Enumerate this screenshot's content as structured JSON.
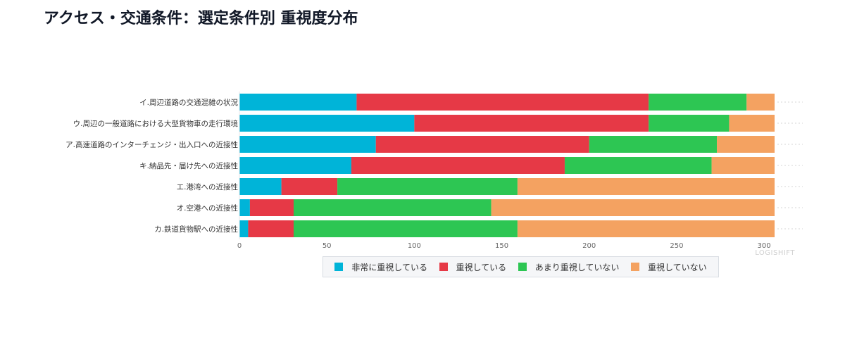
{
  "title": "アクセス・交通条件：選定条件別 重視度分布",
  "watermark": "LOGISHIFT",
  "chart_data": {
    "type": "bar",
    "orientation": "horizontal",
    "stacked": true,
    "categories": [
      "イ.周辺道路の交通混雑の状況",
      "ウ.周辺の一般道路における大型貨物車の走行環境",
      "ア.高速道路のインターチェンジ・出入口への近接性",
      "キ.納品先・届け先への近接性",
      "エ.港湾への近接性",
      "オ.空港への近接性",
      "カ.鉄道貨物駅への近接性"
    ],
    "series": [
      {
        "name": "非常に重視している",
        "color": "#00b4d8",
        "values": [
          67,
          100,
          78,
          64,
          24,
          6,
          5
        ]
      },
      {
        "name": "重視している",
        "color": "#e63946",
        "values": [
          167,
          134,
          122,
          122,
          32,
          25,
          26
        ]
      },
      {
        "name": "あまり重視していない",
        "color": "#2dc653",
        "values": [
          56,
          46,
          73,
          84,
          103,
          113,
          128
        ]
      },
      {
        "name": "重視していない",
        "color": "#f4a261",
        "values": [
          16,
          26,
          33,
          36,
          147,
          162,
          147
        ]
      }
    ],
    "xlim": [
      0,
      306
    ],
    "xticks": [
      0,
      50,
      100,
      150,
      200,
      250,
      300
    ],
    "grid": false,
    "legend_position": "bottom"
  }
}
